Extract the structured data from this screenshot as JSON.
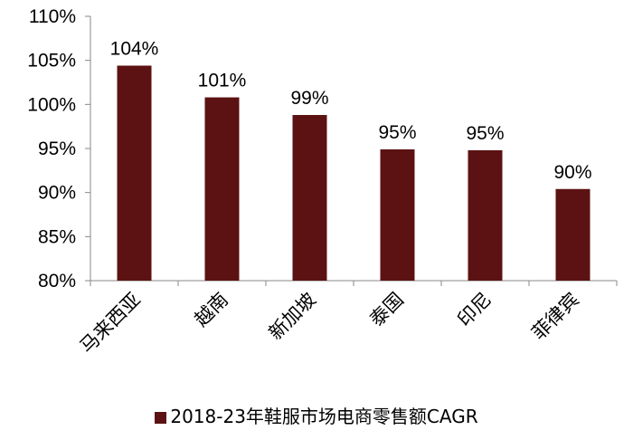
{
  "chart_data": {
    "type": "bar",
    "categories": [
      "马来西亚",
      "越南",
      "新加坡",
      "泰国",
      "印尼",
      "菲律宾"
    ],
    "series": [
      {
        "name": "2018-23年鞋服市场电商零售额CAGR",
        "values": [
          104.4,
          100.8,
          98.8,
          94.9,
          94.8,
          90.4
        ],
        "data_labels": [
          "104%",
          "101%",
          "99%",
          "95%",
          "95%",
          "90%"
        ]
      }
    ],
    "y_ticks": [
      "80%",
      "85%",
      "90%",
      "95%",
      "100%",
      "105%",
      "110%"
    ],
    "ylim": [
      80,
      110
    ],
    "ytick_step": 5,
    "grid": false,
    "legend_position": "bottom",
    "colors": {
      "bar": "#5C1212",
      "axis": "#888888"
    }
  }
}
